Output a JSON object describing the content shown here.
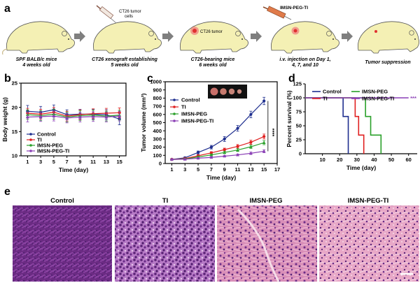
{
  "panel_a": {
    "letter": "a",
    "steps": [
      {
        "caption": [
          "SPF BALB/c mice",
          "4 weeks old"
        ]
      },
      {
        "caption": [
          "CT26 xenograft establishing",
          "5 weeks old"
        ],
        "label": [
          "CT26 tumor",
          "cells"
        ]
      },
      {
        "caption": [
          "CT26-bearing mice",
          "6 weeks old"
        ],
        "label": [
          "CT26 tumor"
        ]
      },
      {
        "caption": [
          "i.v. injection on Day 1,",
          "4, 7, and 10"
        ],
        "label": [
          "IMSN-PEG-TI"
        ]
      },
      {
        "caption": [
          "Tumor suppression"
        ]
      }
    ]
  },
  "panel_e": {
    "letter": "e",
    "labels": [
      "Control",
      "TI",
      "IMSN-PEG",
      "IMSN-PEG-TI"
    ]
  },
  "chart_data": [
    {
      "id": "b",
      "letter": "b",
      "type": "line",
      "xlabel": "Time (day)",
      "ylabel": "Body weight (g)",
      "xlim": [
        0,
        16
      ],
      "ylim": [
        10,
        25
      ],
      "xticks": [
        1,
        3,
        5,
        7,
        9,
        11,
        13,
        15
      ],
      "yticks": [
        10,
        15,
        20,
        25
      ],
      "legend_position": "bottom-left",
      "x": [
        1,
        3,
        5,
        7,
        9,
        11,
        13,
        15
      ],
      "series": [
        {
          "name": "Control",
          "color": "#1f2f8f",
          "marker": "circle",
          "values": [
            19.2,
            19.0,
            19.5,
            18.5,
            18.6,
            18.6,
            18.5,
            17.6
          ],
          "err": [
            1.2,
            1.2,
            1.0,
            1.0,
            1.0,
            1.0,
            1.0,
            1.2
          ]
        },
        {
          "name": "TI",
          "color": "#e02020",
          "marker": "circle",
          "values": [
            18.8,
            18.6,
            19.0,
            18.2,
            18.5,
            18.7,
            18.8,
            18.9
          ],
          "err": [
            1.0,
            1.0,
            1.0,
            1.0,
            1.0,
            1.0,
            1.0,
            1.0
          ]
        },
        {
          "name": "IMSN-PEG",
          "color": "#2aa02a",
          "marker": "triangle",
          "values": [
            18.5,
            18.3,
            18.6,
            18.0,
            18.3,
            18.4,
            18.2,
            18.4
          ],
          "err": [
            1.0,
            1.0,
            1.0,
            1.0,
            1.0,
            1.0,
            1.0,
            1.0
          ]
        },
        {
          "name": "IMSN-PEG-TI",
          "color": "#8a3fb5",
          "marker": "triangle",
          "values": [
            18.0,
            18.1,
            18.2,
            17.8,
            18.0,
            18.1,
            18.0,
            18.2
          ],
          "err": [
            1.0,
            1.0,
            1.0,
            1.0,
            1.0,
            1.0,
            1.0,
            1.0
          ]
        }
      ]
    },
    {
      "id": "c",
      "letter": "c",
      "type": "line",
      "xlabel": "Time (day)",
      "ylabel": "Tumor volume (mm³)",
      "xlim": [
        0,
        17
      ],
      "ylim": [
        0,
        1000
      ],
      "xticks": [
        1,
        3,
        5,
        7,
        9,
        11,
        13,
        15,
        17
      ],
      "yticks": [
        0,
        100,
        200,
        300,
        400,
        500,
        600,
        700,
        800,
        900,
        1000
      ],
      "legend_position": "top-left",
      "significance": "****",
      "x": [
        1,
        3,
        5,
        7,
        9,
        11,
        13,
        15
      ],
      "series": [
        {
          "name": "Control",
          "color": "#1f2f8f",
          "marker": "circle",
          "values": [
            50,
            70,
            135,
            200,
            300,
            430,
            600,
            765
          ],
          "err": [
            8,
            10,
            18,
            22,
            30,
            35,
            40,
            45
          ]
        },
        {
          "name": "TI",
          "color": "#e02020",
          "marker": "circle",
          "values": [
            50,
            60,
            95,
            130,
            170,
            210,
            260,
            330
          ],
          "err": [
            8,
            8,
            12,
            15,
            18,
            22,
            25,
            30
          ]
        },
        {
          "name": "IMSN-PEG",
          "color": "#2aa02a",
          "marker": "triangle",
          "values": [
            50,
            55,
            80,
            105,
            135,
            165,
            205,
            255
          ],
          "err": [
            6,
            8,
            10,
            12,
            15,
            18,
            20,
            25
          ]
        },
        {
          "name": "IMSN-PEG-TI",
          "color": "#8a3fb5",
          "marker": "triangle",
          "values": [
            50,
            52,
            65,
            75,
            90,
            105,
            125,
            150
          ],
          "err": [
            6,
            6,
            8,
            10,
            10,
            12,
            15,
            18
          ]
        }
      ]
    },
    {
      "id": "d",
      "letter": "d",
      "type": "line",
      "xlabel": "Time (day)",
      "ylabel": "Percent survival (%)",
      "xlim": [
        0,
        65
      ],
      "ylim": [
        0,
        125
      ],
      "xticks": [
        10,
        20,
        30,
        40,
        50,
        60
      ],
      "yticks": [
        0,
        25,
        50,
        75,
        100,
        125
      ],
      "legend_position": "top",
      "significance": "***",
      "series": [
        {
          "name": "Control",
          "color": "#1f2f8f",
          "step_x": [
            0,
            22,
            22,
            25,
            25
          ],
          "step_y": [
            100,
            100,
            66.7,
            66.7,
            0
          ]
        },
        {
          "name": "TI",
          "color": "#e02020",
          "step_x": [
            0,
            29,
            29,
            31,
            31,
            34,
            34
          ],
          "step_y": [
            100,
            100,
            66.7,
            66.7,
            33.3,
            33.3,
            0
          ]
        },
        {
          "name": "IMSN-PEG",
          "color": "#2aa02a",
          "step_x": [
            0,
            35,
            35,
            38,
            38,
            44,
            44
          ],
          "step_y": [
            100,
            100,
            66.7,
            66.7,
            33.3,
            33.3,
            0
          ]
        },
        {
          "name": "IMSN-PEG-TI",
          "color": "#8a3fb5",
          "step_x": [
            0,
            60
          ],
          "step_y": [
            100,
            100
          ]
        }
      ]
    }
  ]
}
